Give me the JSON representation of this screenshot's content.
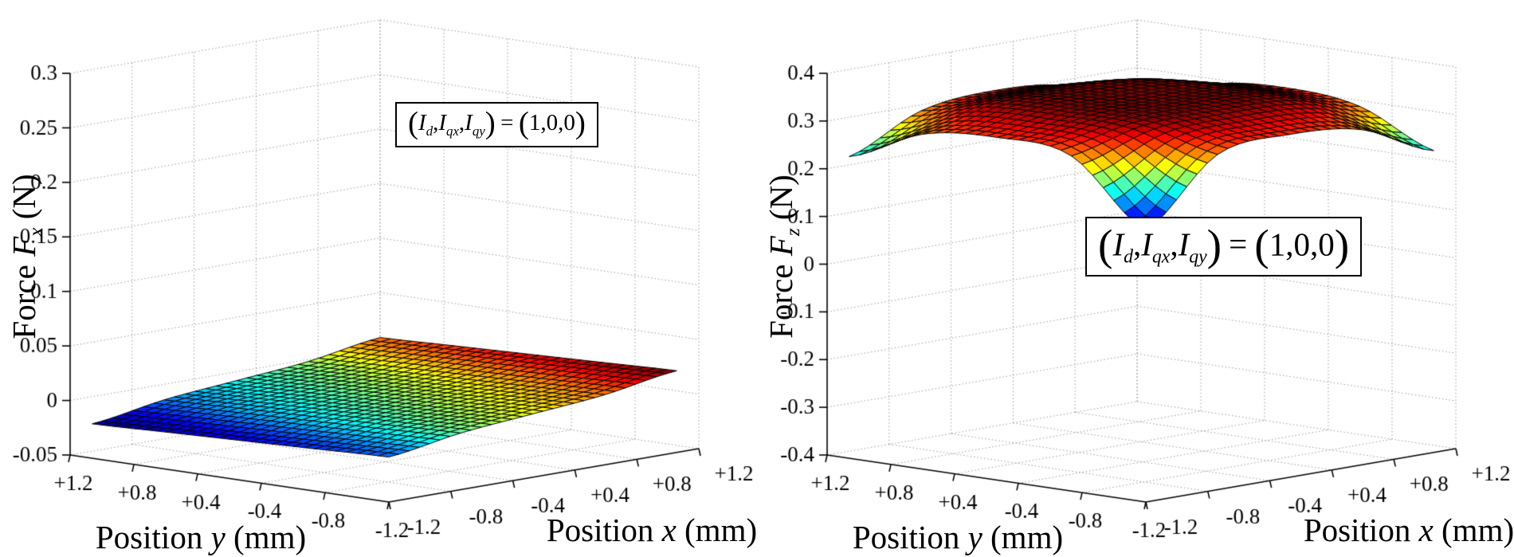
{
  "figure": {
    "background": "#ffffff",
    "grid_color": "#9a9a9a",
    "axis_color": "#000000",
    "mesh_edge_color": "#000000"
  },
  "colormap": {
    "name": "jet",
    "stops": [
      [
        0.0,
        "#00008f"
      ],
      [
        0.125,
        "#0000ff"
      ],
      [
        0.375,
        "#00ffff"
      ],
      [
        0.5,
        "#7fff7f"
      ],
      [
        0.625,
        "#ffff00"
      ],
      [
        0.875,
        "#ff0000"
      ],
      [
        1.0,
        "#7f0000"
      ]
    ]
  },
  "chart_data": [
    {
      "type": "surface3d",
      "name": "force-fx-surface",
      "zlabel": {
        "prefix": "Force",
        "variable": "F",
        "subscript": "x",
        "unit": "(N)"
      },
      "xlabel": {
        "prefix": "Position",
        "variable": "x",
        "unit": "(mm)"
      },
      "ylabel": {
        "prefix": "Position",
        "variable": "y",
        "unit": "(mm)"
      },
      "x_range": [
        -1.2,
        1.2
      ],
      "y_range": [
        -1.2,
        1.2
      ],
      "z_range": [
        -0.05,
        0.3
      ],
      "x_tick_labels": [
        "-1.2",
        "-0.8",
        "-0.4",
        "+0.4",
        "+0.8",
        "+1.2"
      ],
      "y_tick_labels": [
        "+1.2",
        "+0.8",
        "+0.4",
        "-0.4",
        "-0.8",
        "-1.2"
      ],
      "z_tick_labels": [
        "-0.05",
        "0",
        "0.05",
        "0.1",
        "0.15",
        "0.2",
        "0.25",
        "0.3"
      ],
      "grid": true,
      "legend": false,
      "annotation_parts": [
        {
          "text": "(",
          "style": "paren"
        },
        {
          "text": "I",
          "style": "var"
        },
        {
          "text": "d",
          "style": "sub"
        },
        {
          "text": ",",
          "style": "plain"
        },
        {
          "text": "I",
          "style": "var"
        },
        {
          "text": "qx",
          "style": "sub"
        },
        {
          "text": ",",
          "style": "plain"
        },
        {
          "text": "I",
          "style": "var"
        },
        {
          "text": "qy",
          "style": "sub"
        },
        {
          "text": ")",
          "style": "paren"
        },
        {
          "text": "=",
          "style": "eq"
        },
        {
          "text": "(",
          "style": "paren"
        },
        {
          "text": "1,0,0",
          "style": "plain"
        },
        {
          "text": ")",
          "style": "paren"
        }
      ],
      "surface": {
        "x_nodes": [
          -1.2,
          -0.6,
          0.0,
          0.6,
          1.2
        ],
        "y_nodes": [
          1.2,
          0.6,
          0.0,
          -0.6,
          -1.2
        ],
        "z_grid": [
          [
            -0.0216,
            -0.011,
            -0.0048,
            0.0014,
            0.012
          ],
          [
            -0.0192,
            -0.0086,
            -0.0024,
            0.0038,
            0.0144
          ],
          [
            -0.0168,
            -0.0062,
            0.0,
            0.0062,
            0.0168
          ],
          [
            -0.0144,
            -0.0038,
            0.0024,
            0.0086,
            0.0192
          ],
          [
            -0.012,
            -0.0014,
            0.0048,
            0.011,
            0.0216
          ]
        ]
      },
      "mesh_divisions": 28
    },
    {
      "type": "surface3d",
      "name": "force-fz-surface",
      "zlabel": {
        "prefix": "Force",
        "variable": "F",
        "subscript": "z",
        "unit": "(N)"
      },
      "xlabel": {
        "prefix": "Position",
        "variable": "x",
        "unit": "(mm)"
      },
      "ylabel": {
        "prefix": "Position",
        "variable": "y",
        "unit": "(mm)"
      },
      "x_range": [
        -1.2,
        1.2
      ],
      "y_range": [
        -1.2,
        1.2
      ],
      "z_range": [
        -0.4,
        0.4
      ],
      "x_tick_labels": [
        "-1.2",
        "-0.8",
        "-0.4",
        "+0.4",
        "+0.8",
        "+1.2"
      ],
      "y_tick_labels": [
        "+1.2",
        "+0.8",
        "+0.4",
        "-0.4",
        "-0.8",
        "-1.2"
      ],
      "z_tick_labels": [
        "-0.4",
        "-0.3",
        "-0.2",
        "-0.1",
        "0",
        "0.1",
        "0.2",
        "0.3",
        "0.4"
      ],
      "grid": true,
      "legend": false,
      "annotation_parts": [
        {
          "text": "(",
          "style": "paren"
        },
        {
          "text": "I",
          "style": "var"
        },
        {
          "text": "d",
          "style": "sub"
        },
        {
          "text": ",",
          "style": "plain"
        },
        {
          "text": "I",
          "style": "var"
        },
        {
          "text": "qx",
          "style": "sub"
        },
        {
          "text": ",",
          "style": "plain"
        },
        {
          "text": "I",
          "style": "var"
        },
        {
          "text": "qy",
          "style": "sub"
        },
        {
          "text": ")",
          "style": "paren"
        },
        {
          "text": "=",
          "style": "eq"
        },
        {
          "text": "(",
          "style": "paren"
        },
        {
          "text": "1,0,0",
          "style": "plain"
        },
        {
          "text": ")",
          "style": "paren"
        }
      ],
      "surface": {
        "x_nodes": [
          -1.2,
          -0.6,
          0.0,
          0.6,
          1.2
        ],
        "y_nodes": [
          1.2,
          0.6,
          0.0,
          -0.6,
          -1.2
        ],
        "z_grid": [
          [
            0.225,
            0.295,
            0.311,
            0.295,
            0.225
          ],
          [
            0.295,
            0.333,
            0.338,
            0.333,
            0.295
          ],
          [
            0.311,
            0.338,
            0.34,
            0.338,
            0.311
          ],
          [
            0.295,
            0.333,
            0.338,
            0.333,
            0.295
          ],
          [
            0.16,
            0.295,
            0.311,
            0.295,
            0.225
          ]
        ]
      },
      "mesh_divisions": 28
    }
  ]
}
